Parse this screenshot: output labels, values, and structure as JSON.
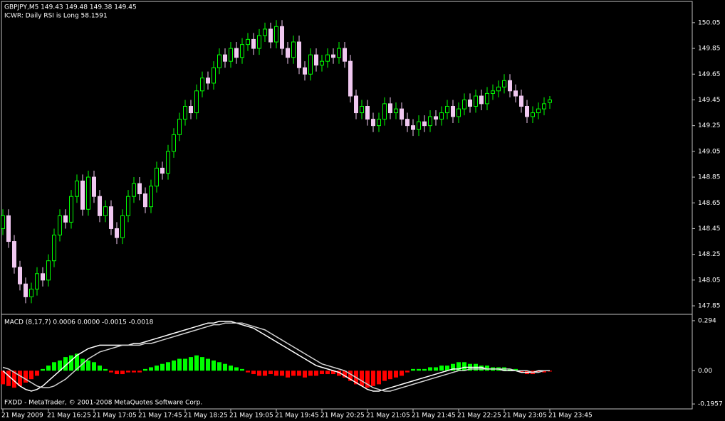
{
  "chart_data": [
    {
      "type": "candlestick",
      "title": "GBPJPY,M5  149.43 149.48 149.38 149.45",
      "subtitle": "ICWR: Daily RSI is Long 58.1591",
      "categories": [
        "21 May 2009",
        null,
        null,
        null,
        null,
        null,
        null,
        null,
        "21 May 16:25",
        null,
        null,
        null,
        null,
        null,
        null,
        null,
        "21 May 17:05",
        null,
        null,
        null,
        null,
        null,
        null,
        null,
        "21 May 17:45",
        null,
        null,
        null,
        null,
        null,
        null,
        null,
        "21 May 18:25",
        null,
        null,
        null,
        null,
        null,
        null,
        null,
        "21 May 19:05",
        null,
        null,
        null,
        null,
        null,
        null,
        null,
        "21 May 19:45",
        null,
        null,
        null,
        null,
        null,
        null,
        null,
        "21 May 20:25",
        null,
        null,
        null,
        null,
        null,
        null,
        null,
        "21 May 21:05",
        null,
        null,
        null,
        null,
        null,
        null,
        null,
        "21 May 21:45",
        null,
        null,
        null,
        null,
        null,
        null,
        null,
        "21 May 22:25",
        null,
        null,
        null,
        null,
        null,
        null,
        null,
        "21 May 23:05",
        null,
        null,
        null,
        null,
        null,
        null,
        null,
        "21 May 23:45"
      ],
      "open": [
        148.45,
        148.55,
        148.35,
        148.15,
        148.02,
        147.92,
        147.98,
        148.1,
        148.05,
        148.2,
        148.4,
        148.55,
        148.5,
        148.7,
        148.82,
        148.6,
        148.85,
        148.7,
        148.55,
        148.62,
        148.45,
        148.38,
        148.55,
        148.7,
        148.8,
        148.72,
        148.62,
        148.78,
        148.92,
        148.88,
        149.05,
        149.18,
        149.3,
        149.4,
        149.35,
        149.52,
        149.62,
        149.58,
        149.7,
        149.8,
        149.75,
        149.85,
        149.78,
        149.88,
        149.92,
        149.85,
        149.95,
        150.0,
        149.9,
        150.02,
        149.85,
        149.78,
        149.9,
        149.7,
        149.65,
        149.8,
        149.72,
        149.75,
        149.8,
        149.78,
        149.85,
        149.75,
        149.48,
        149.35,
        149.4,
        149.3,
        149.25,
        149.3,
        149.42,
        149.35,
        149.38,
        149.3,
        149.25,
        149.22,
        149.28,
        149.25,
        149.32,
        149.3,
        149.35,
        149.4,
        149.32,
        149.38,
        149.45,
        149.4,
        149.48,
        149.42,
        149.5,
        149.52,
        149.55,
        149.6,
        149.52,
        149.48,
        149.4,
        149.32,
        149.35,
        149.38,
        149.43
      ],
      "high": [
        148.6,
        148.6,
        148.4,
        148.2,
        148.07,
        148.03,
        148.15,
        148.15,
        148.25,
        148.45,
        148.6,
        148.6,
        148.75,
        148.87,
        148.87,
        148.9,
        148.9,
        148.75,
        148.67,
        148.67,
        148.5,
        148.6,
        148.75,
        148.85,
        148.85,
        148.77,
        148.83,
        148.97,
        148.97,
        149.1,
        149.23,
        149.35,
        149.45,
        149.45,
        149.57,
        149.67,
        149.67,
        149.75,
        149.85,
        149.85,
        149.9,
        149.9,
        149.93,
        149.97,
        149.97,
        150.0,
        150.05,
        150.05,
        150.07,
        150.07,
        149.9,
        149.95,
        149.95,
        149.75,
        149.85,
        149.85,
        149.8,
        149.85,
        149.85,
        149.9,
        149.9,
        149.8,
        149.53,
        149.45,
        149.45,
        149.35,
        149.35,
        149.47,
        149.47,
        149.43,
        149.43,
        149.35,
        149.3,
        149.33,
        149.33,
        149.37,
        149.37,
        149.4,
        149.45,
        149.45,
        149.43,
        149.5,
        149.5,
        149.53,
        149.53,
        149.55,
        149.57,
        149.6,
        149.65,
        149.65,
        149.57,
        149.53,
        149.45,
        149.4,
        149.43,
        149.47,
        149.48
      ],
      "low": [
        148.4,
        148.3,
        148.1,
        147.97,
        147.87,
        147.87,
        147.93,
        148.0,
        148.0,
        148.15,
        148.35,
        148.45,
        148.45,
        148.65,
        148.55,
        148.55,
        148.65,
        148.5,
        148.5,
        148.4,
        148.33,
        148.33,
        148.5,
        148.65,
        148.67,
        148.57,
        148.57,
        148.73,
        148.83,
        148.83,
        149.0,
        149.13,
        149.25,
        149.3,
        149.3,
        149.47,
        149.53,
        149.53,
        149.65,
        149.7,
        149.7,
        149.73,
        149.73,
        149.83,
        149.8,
        149.8,
        149.9,
        149.85,
        149.85,
        149.8,
        149.73,
        149.73,
        149.65,
        149.6,
        149.6,
        149.67,
        149.67,
        149.7,
        149.73,
        149.73,
        149.7,
        149.43,
        149.3,
        149.3,
        149.25,
        149.2,
        149.2,
        149.25,
        149.3,
        149.3,
        149.25,
        149.2,
        149.17,
        149.17,
        149.2,
        149.2,
        149.25,
        149.25,
        149.3,
        149.27,
        149.27,
        149.33,
        149.35,
        149.35,
        149.37,
        149.37,
        149.45,
        149.47,
        149.5,
        149.47,
        149.43,
        149.35,
        149.27,
        149.27,
        149.3,
        149.33,
        149.38
      ],
      "close": [
        148.55,
        148.35,
        148.15,
        148.02,
        147.92,
        147.98,
        148.1,
        148.05,
        148.2,
        148.4,
        148.55,
        148.5,
        148.7,
        148.82,
        148.6,
        148.85,
        148.7,
        148.55,
        148.62,
        148.45,
        148.38,
        148.55,
        148.7,
        148.8,
        148.72,
        148.62,
        148.78,
        148.92,
        148.88,
        149.05,
        149.18,
        149.3,
        149.4,
        149.35,
        149.52,
        149.62,
        149.58,
        149.7,
        149.8,
        149.75,
        149.85,
        149.78,
        149.88,
        149.92,
        149.85,
        149.95,
        150.0,
        149.9,
        150.02,
        149.85,
        149.78,
        149.9,
        149.7,
        149.65,
        149.8,
        149.72,
        149.75,
        149.8,
        149.78,
        149.85,
        149.75,
        149.48,
        149.35,
        149.4,
        149.3,
        149.25,
        149.3,
        149.42,
        149.35,
        149.38,
        149.3,
        149.25,
        149.22,
        149.28,
        149.25,
        149.32,
        149.3,
        149.35,
        149.4,
        149.32,
        149.38,
        149.45,
        149.4,
        149.48,
        149.42,
        149.5,
        149.52,
        149.55,
        149.6,
        149.52,
        149.48,
        149.4,
        149.32,
        149.35,
        149.38,
        149.42,
        149.45
      ],
      "up_color": "#00ff00",
      "down_color": "#f0c8f0",
      "ylim": [
        147.795,
        150.215
      ],
      "yticks": [
        147.85,
        148.05,
        148.25,
        148.45,
        148.65,
        148.85,
        149.05,
        149.25,
        149.45,
        149.65,
        149.85,
        150.05
      ]
    },
    {
      "type": "macd",
      "title": "MACD (8,17,7) 0.0006 0.0000 -0.0015 -0.0018",
      "annotation": "FXDD - MetaTrader, © 2001-2008 MetaQuotes Software Corp.",
      "values": [
        -0.08,
        -0.09,
        -0.1,
        -0.09,
        -0.07,
        -0.05,
        -0.03,
        0.01,
        0.03,
        0.05,
        0.06,
        0.08,
        0.09,
        0.1,
        0.07,
        0.06,
        0.05,
        0.03,
        0.01,
        -0.01,
        -0.02,
        -0.02,
        -0.01,
        -0.01,
        -0.01,
        0.01,
        0.02,
        0.03,
        0.04,
        0.05,
        0.06,
        0.07,
        0.07,
        0.08,
        0.09,
        0.08,
        0.07,
        0.06,
        0.05,
        0.04,
        0.03,
        0.02,
        0.01,
        -0.01,
        -0.02,
        -0.03,
        -0.03,
        -0.02,
        -0.03,
        -0.03,
        -0.04,
        -0.03,
        -0.03,
        -0.04,
        -0.03,
        -0.03,
        -0.02,
        -0.02,
        -0.02,
        -0.03,
        -0.04,
        -0.06,
        -0.08,
        -0.09,
        -0.1,
        -0.09,
        -0.08,
        -0.06,
        -0.05,
        -0.04,
        -0.03,
        -0.01,
        0.01,
        0.01,
        0.01,
        0.02,
        0.02,
        0.03,
        0.03,
        0.04,
        0.05,
        0.05,
        0.04,
        0.04,
        0.03,
        0.03,
        0.02,
        0.02,
        0.02,
        0.01,
        0.01,
        -0.01,
        -0.02,
        -0.02,
        -0.01,
        -0.01,
        -0.005
      ],
      "up_color": "#00ff00",
      "down_color": "#ff0000",
      "lines": [
        {
          "color": "#ffffff",
          "values": [
            0.0,
            -0.03,
            -0.06,
            -0.09,
            -0.11,
            -0.12,
            -0.11,
            -0.09,
            -0.06,
            -0.03,
            0.0,
            0.03,
            0.06,
            0.09,
            0.11,
            0.13,
            0.14,
            0.15,
            0.15,
            0.15,
            0.15,
            0.15,
            0.15,
            0.16,
            0.16,
            0.17,
            0.18,
            0.19,
            0.2,
            0.21,
            0.22,
            0.23,
            0.24,
            0.25,
            0.26,
            0.27,
            0.28,
            0.28,
            0.29,
            0.29,
            0.29,
            0.28,
            0.27,
            0.26,
            0.25,
            0.23,
            0.21,
            0.19,
            0.17,
            0.15,
            0.13,
            0.11,
            0.09,
            0.07,
            0.05,
            0.03,
            0.02,
            0.01,
            0.0,
            -0.01,
            -0.03,
            -0.05,
            -0.07,
            -0.09,
            -0.11,
            -0.12,
            -0.12,
            -0.11,
            -0.1,
            -0.09,
            -0.08,
            -0.07,
            -0.06,
            -0.05,
            -0.04,
            -0.03,
            -0.02,
            -0.01,
            0.0,
            0.01,
            0.01,
            0.02,
            0.02,
            0.02,
            0.02,
            0.01,
            0.01,
            0.01,
            0.0,
            0.0,
            0.0,
            -0.01,
            -0.01,
            -0.01,
            0.0,
            0.0,
            0.0006
          ]
        },
        {
          "color": "#d0d0d0",
          "values": [
            0.02,
            0.01,
            -0.01,
            -0.03,
            -0.05,
            -0.07,
            -0.09,
            -0.1,
            -0.1,
            -0.09,
            -0.07,
            -0.05,
            -0.02,
            0.01,
            0.04,
            0.07,
            0.09,
            0.11,
            0.12,
            0.13,
            0.14,
            0.15,
            0.15,
            0.15,
            0.15,
            0.16,
            0.16,
            0.17,
            0.18,
            0.19,
            0.2,
            0.21,
            0.22,
            0.23,
            0.24,
            0.25,
            0.26,
            0.27,
            0.27,
            0.28,
            0.28,
            0.28,
            0.28,
            0.27,
            0.26,
            0.25,
            0.24,
            0.22,
            0.2,
            0.18,
            0.16,
            0.14,
            0.12,
            0.1,
            0.08,
            0.06,
            0.04,
            0.03,
            0.02,
            0.01,
            0.0,
            -0.02,
            -0.04,
            -0.06,
            -0.08,
            -0.1,
            -0.11,
            -0.12,
            -0.12,
            -0.11,
            -0.1,
            -0.09,
            -0.08,
            -0.07,
            -0.06,
            -0.05,
            -0.04,
            -0.03,
            -0.02,
            -0.01,
            0.0,
            0.0,
            0.01,
            0.01,
            0.01,
            0.01,
            0.01,
            0.01,
            0.01,
            0.01,
            0.0,
            0.0,
            0.0,
            -0.01,
            -0.01,
            0.0,
            0.0
          ]
        }
      ],
      "ylim": [
        -0.2247,
        0.323
      ],
      "yticks": [
        0.294,
        {
          "value": 0,
          "label": "0.00"
        },
        -0.1957
      ]
    }
  ]
}
